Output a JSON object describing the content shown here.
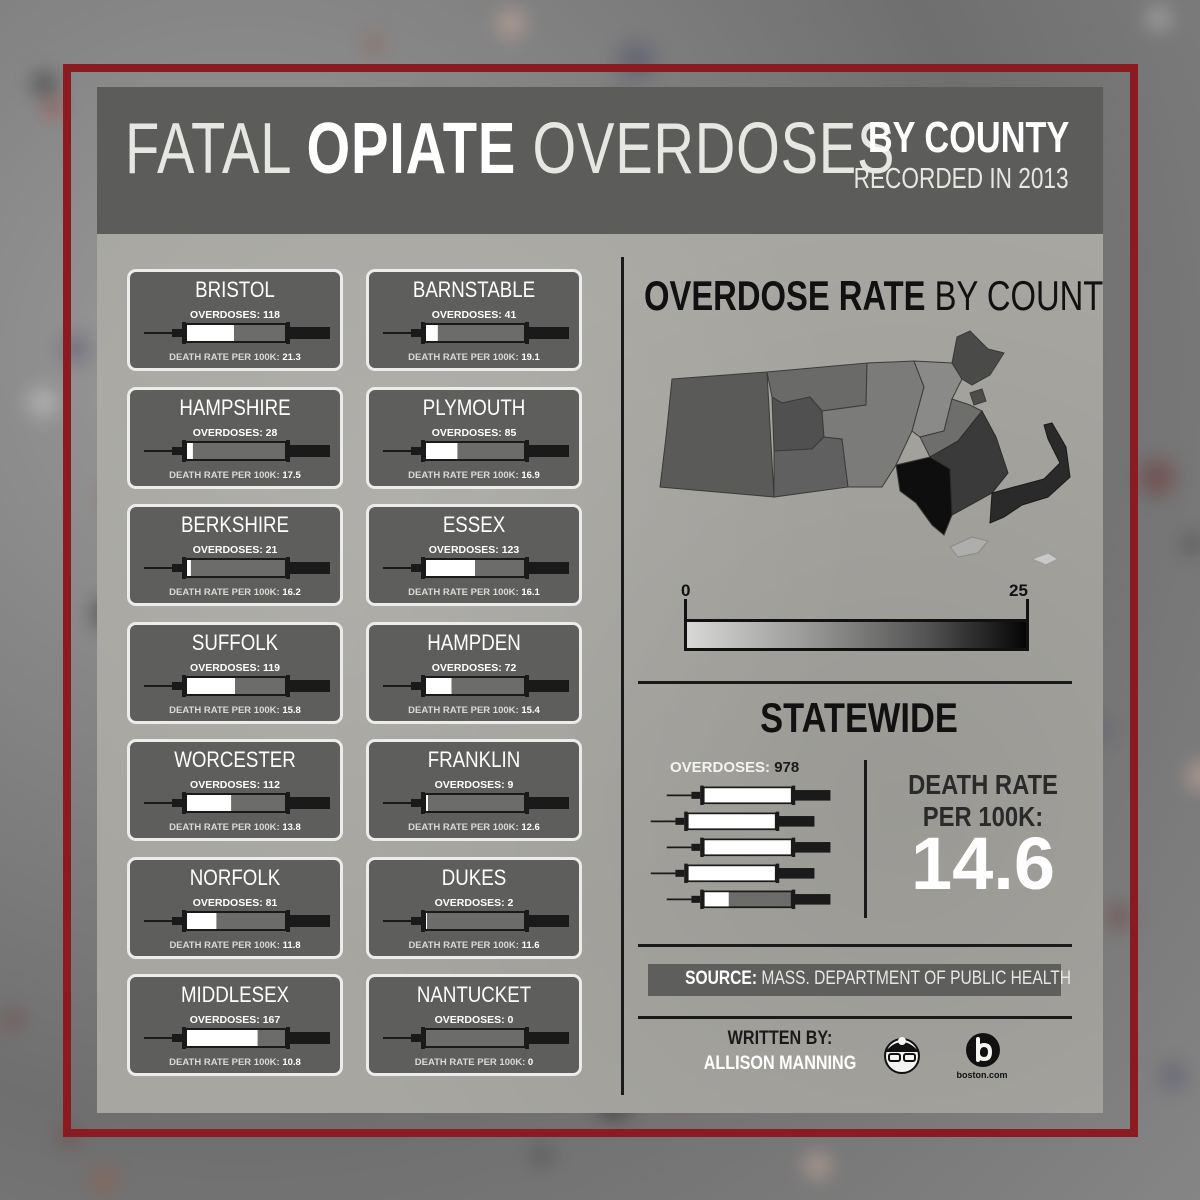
{
  "colors": {
    "frame": "#8a1b21",
    "header": "#5c5d5a",
    "card": "#5e5f5c",
    "poster": "#a7a6a1"
  },
  "header": {
    "title_pre": "FATAL ",
    "title_bold": "OPIATE",
    "title_post": " OVERDOSES",
    "side_top": "BY COUNTY",
    "side_bottom": "RECORDED IN 2013"
  },
  "labels": {
    "overdoses_prefix": "OVERDOSES: ",
    "death_rate_prefix": "DEATH RATE PER 100K: "
  },
  "counties": [
    {
      "name": "BRISTOL",
      "overdoses": "118",
      "rate": "21.3",
      "fill": 0.48
    },
    {
      "name": "BARNSTABLE",
      "overdoses": "41",
      "rate": "19.1",
      "fill": 0.12
    },
    {
      "name": "HAMPSHIRE",
      "overdoses": "28",
      "rate": "17.5",
      "fill": 0.06
    },
    {
      "name": "PLYMOUTH",
      "overdoses": "85",
      "rate": "16.9",
      "fill": 0.32
    },
    {
      "name": "BERKSHIRE",
      "overdoses": "21",
      "rate": "16.2",
      "fill": 0.04
    },
    {
      "name": "ESSEX",
      "overdoses": "123",
      "rate": "16.1",
      "fill": 0.5
    },
    {
      "name": "SUFFOLK",
      "overdoses": "119",
      "rate": "15.8",
      "fill": 0.49
    },
    {
      "name": "HAMPDEN",
      "overdoses": "72",
      "rate": "15.4",
      "fill": 0.26
    },
    {
      "name": "WORCESTER",
      "overdoses": "112",
      "rate": "13.8",
      "fill": 0.45
    },
    {
      "name": "FRANKLIN",
      "overdoses": "9",
      "rate": "12.6",
      "fill": 0.02
    },
    {
      "name": "NORFOLK",
      "overdoses": "81",
      "rate": "11.8",
      "fill": 0.3
    },
    {
      "name": "DUKES",
      "overdoses": "2",
      "rate": "11.6",
      "fill": 0.01
    },
    {
      "name": "MIDDLESEX",
      "overdoses": "167",
      "rate": "10.8",
      "fill": 0.72
    },
    {
      "name": "NANTUCKET",
      "overdoses": "0",
      "rate": "0",
      "fill": 0
    }
  ],
  "map": {
    "title_bold": "OVERDOSE RATE",
    "title_rest": " BY COUNTY",
    "scale_min": "0",
    "scale_max": "25"
  },
  "statewide": {
    "title": "STATEWIDE",
    "overdoses_label": "OVERDOSES:",
    "overdoses_value": "978",
    "death_rate_label_1": "DEATH RATE",
    "death_rate_label_2": "PER 100K:",
    "death_rate_value": "14.6"
  },
  "source": {
    "label": "SOURCE:",
    "text": " MASS. DEPARTMENT OF PUBLIC HEALTH"
  },
  "credit": {
    "label": "WRITTEN BY:",
    "name": "ALLISON MANNING",
    "logo_text": "boston.com"
  }
}
